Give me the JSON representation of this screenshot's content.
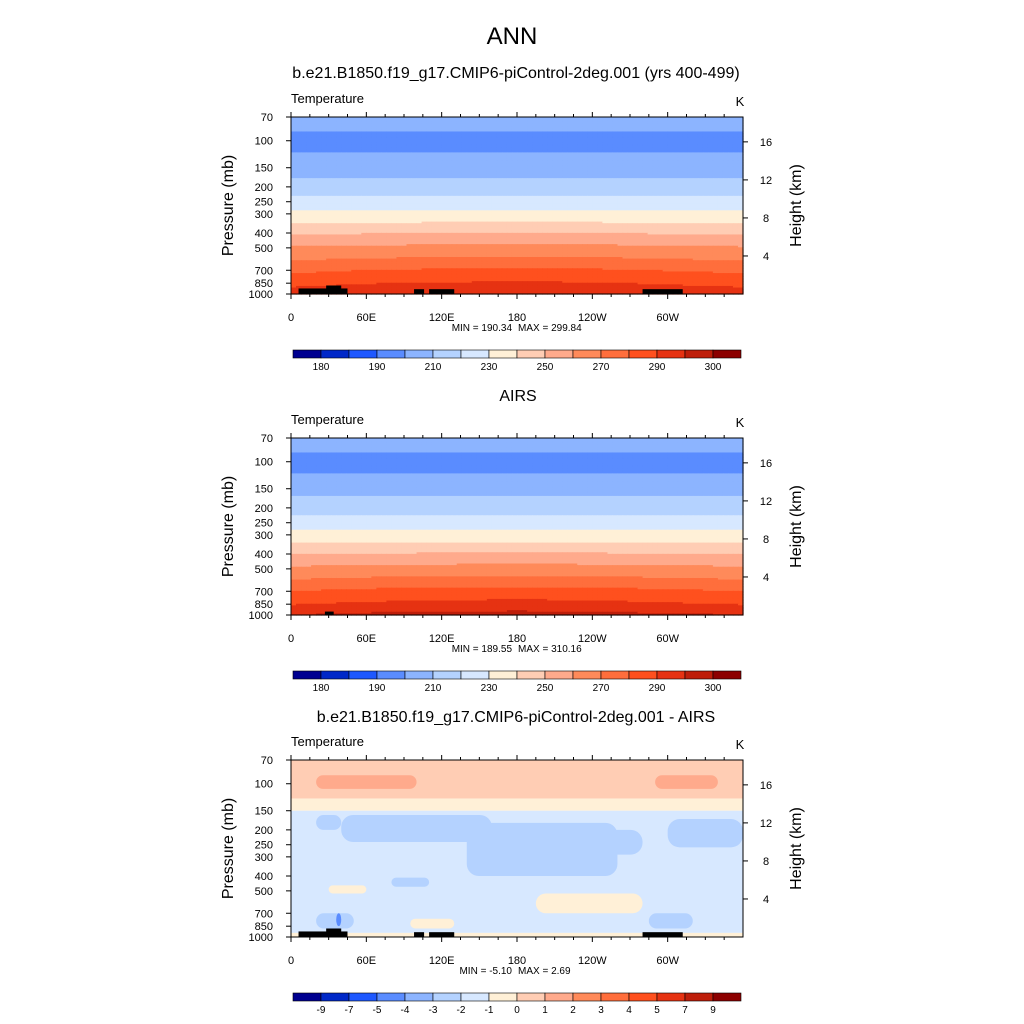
{
  "figure": {
    "title": "ANN"
  },
  "chart_data": [
    {
      "type": "heatmap",
      "title": "b.e21.B1850.f19_g17.CMIP6-piControl-2deg.001 (yrs 400-499)",
      "variable": "Temperature",
      "units": "K",
      "ylabel": "Pressure (mb)",
      "y2label": "Height (km)",
      "pressure_ticks": [
        70,
        100,
        150,
        200,
        250,
        300,
        400,
        500,
        700,
        850,
        1000
      ],
      "height_ticks": [
        4,
        8,
        12,
        16
      ],
      "x_ticks": [
        "0",
        "60E",
        "120E",
        "180",
        "120W",
        "60W"
      ],
      "min_label": "MIN = 190.34",
      "max_label": "MAX = 299.84",
      "colorbar": {
        "tick_labels": [
          "180",
          "190",
          "210",
          "230",
          "250",
          "270",
          "290",
          "300"
        ],
        "colors": [
          "#000090",
          "#0028c8",
          "#1e58ff",
          "#5a8cff",
          "#8cb4ff",
          "#b4d2ff",
          "#d7e8ff",
          "#fff0d7",
          "#ffcdb4",
          "#ffaa8c",
          "#ff8a5a",
          "#ff6e3c",
          "#ff501e",
          "#e63212",
          "#be1e0a",
          "#8c0000"
        ]
      },
      "profile_levels": [
        {
          "p": 70,
          "t": 209
        },
        {
          "p": 100,
          "t": 203
        },
        {
          "p": 130,
          "t": 207
        },
        {
          "p": 150,
          "t": 211
        },
        {
          "p": 200,
          "t": 218
        },
        {
          "p": 250,
          "t": 226
        },
        {
          "p": 300,
          "t": 234
        },
        {
          "p": 400,
          "t": 248
        },
        {
          "p": 500,
          "t": 259
        },
        {
          "p": 700,
          "t": 274
        },
        {
          "p": 850,
          "t": 282
        },
        {
          "p": 1000,
          "t": 289
        }
      ],
      "lon_anomaly": [
        {
          "lon": 0,
          "d": -1.5
        },
        {
          "lon": 60,
          "d": 0.5
        },
        {
          "lon": 120,
          "d": 1.5
        },
        {
          "lon": 180,
          "d": 2.0
        },
        {
          "lon": 240,
          "d": 1.5
        },
        {
          "lon": 300,
          "d": 0.0
        },
        {
          "lon": 360,
          "d": -1.5
        }
      ],
      "topography": [
        {
          "lon0": 6,
          "lon1": 45,
          "p": 920
        },
        {
          "lon0": 28,
          "lon1": 40,
          "p": 880
        },
        {
          "lon0": 98,
          "lon1": 106,
          "p": 930
        },
        {
          "lon0": 110,
          "lon1": 130,
          "p": 930
        },
        {
          "lon0": 280,
          "lon1": 312,
          "p": 930
        }
      ]
    },
    {
      "type": "heatmap",
      "title": "AIRS",
      "variable": "Temperature",
      "units": "K",
      "ylabel": "Pressure (mb)",
      "y2label": "Height (km)",
      "pressure_ticks": [
        70,
        100,
        150,
        200,
        250,
        300,
        400,
        500,
        700,
        850,
        1000
      ],
      "height_ticks": [
        4,
        8,
        12,
        16
      ],
      "x_ticks": [
        "0",
        "60E",
        "120E",
        "180",
        "120W",
        "60W"
      ],
      "min_label": "MIN = 189.55",
      "max_label": "MAX = 310.16",
      "colorbar": {
        "tick_labels": [
          "180",
          "190",
          "210",
          "230",
          "250",
          "270",
          "290",
          "300"
        ],
        "colors": [
          "#000090",
          "#0028c8",
          "#1e58ff",
          "#5a8cff",
          "#8cb4ff",
          "#b4d2ff",
          "#d7e8ff",
          "#fff0d7",
          "#ffcdb4",
          "#ffaa8c",
          "#ff8a5a",
          "#ff6e3c",
          "#ff501e",
          "#e63212",
          "#be1e0a",
          "#8c0000"
        ]
      },
      "profile_levels": [
        {
          "p": 70,
          "t": 209
        },
        {
          "p": 100,
          "t": 203
        },
        {
          "p": 130,
          "t": 207
        },
        {
          "p": 150,
          "t": 212
        },
        {
          "p": 200,
          "t": 219
        },
        {
          "p": 250,
          "t": 227
        },
        {
          "p": 300,
          "t": 235
        },
        {
          "p": 400,
          "t": 249
        },
        {
          "p": 500,
          "t": 260
        },
        {
          "p": 700,
          "t": 276
        },
        {
          "p": 850,
          "t": 284
        },
        {
          "p": 1000,
          "t": 293
        }
      ],
      "lon_anomaly": [
        {
          "lon": 0,
          "d": -1.5
        },
        {
          "lon": 60,
          "d": 0.5
        },
        {
          "lon": 120,
          "d": 1.5
        },
        {
          "lon": 180,
          "d": 2.0
        },
        {
          "lon": 240,
          "d": 1.5
        },
        {
          "lon": 300,
          "d": 0.0
        },
        {
          "lon": 360,
          "d": -1.5
        }
      ],
      "topography": [
        {
          "lon0": 27,
          "lon1": 34,
          "p": 950
        }
      ]
    },
    {
      "type": "heatmap",
      "title": "b.e21.B1850.f19_g17.CMIP6-piControl-2deg.001 - AIRS",
      "variable": "Temperature",
      "units": "K",
      "ylabel": "Pressure (mb)",
      "y2label": "Height (km)",
      "pressure_ticks": [
        70,
        100,
        150,
        200,
        250,
        300,
        400,
        500,
        700,
        850,
        1000
      ],
      "height_ticks": [
        4,
        8,
        12,
        16
      ],
      "x_ticks": [
        "0",
        "60E",
        "120E",
        "180",
        "120W",
        "60W"
      ],
      "min_label": "MIN =  -5.10",
      "max_label": "MAX =   2.69",
      "colorbar": {
        "tick_labels": [
          "-9",
          "-7",
          "-5",
          "-4",
          "-3",
          "-2",
          "-1",
          "0",
          "1",
          "2",
          "3",
          "4",
          "5",
          "7",
          "9"
        ],
        "colors": [
          "#000090",
          "#0028c8",
          "#1e58ff",
          "#5a8cff",
          "#8cb4ff",
          "#b4d2ff",
          "#d7e8ff",
          "#fff0d7",
          "#ffcdb4",
          "#ffaa8c",
          "#ff8a5a",
          "#ff6e3c",
          "#ff501e",
          "#e63212",
          "#be1e0a",
          "#8c0000"
        ]
      },
      "difference_bands": [
        {
          "p0": 70,
          "p1": 125,
          "value": 0.5
        },
        {
          "p0": 125,
          "p1": 150,
          "value": -0.5
        },
        {
          "p0": 150,
          "p1": 940,
          "value": -1.5
        },
        {
          "p0": 940,
          "p1": 1000,
          "value": -0.5
        }
      ],
      "difference_features": [
        {
          "lon0": 20,
          "lon1": 100,
          "p0": 88,
          "p1": 108,
          "value": 1.5
        },
        {
          "lon0": 290,
          "lon1": 340,
          "p0": 88,
          "p1": 108,
          "value": 1.5
        },
        {
          "lon0": 40,
          "lon1": 160,
          "p0": 160,
          "p1": 240,
          "value": -2.5
        },
        {
          "lon0": 190,
          "lon1": 280,
          "p0": 200,
          "p1": 290,
          "value": -2.5
        },
        {
          "lon0": 300,
          "lon1": 360,
          "p0": 170,
          "p1": 260,
          "value": -2.5
        },
        {
          "lon0": 20,
          "lon1": 40,
          "p0": 160,
          "p1": 200,
          "value": -2.5
        },
        {
          "lon0": 140,
          "lon1": 260,
          "p0": 180,
          "p1": 400,
          "value": -2.5
        },
        {
          "lon0": 80,
          "lon1": 110,
          "p0": 410,
          "p1": 470,
          "value": -2.5
        },
        {
          "lon0": 30,
          "lon1": 60,
          "p0": 460,
          "p1": 520,
          "value": -0.5
        },
        {
          "lon0": 195,
          "lon1": 280,
          "p0": 520,
          "p1": 700,
          "value": -0.5
        },
        {
          "lon0": 20,
          "lon1": 50,
          "p0": 700,
          "p1": 880,
          "value": -2.5
        },
        {
          "lon0": 285,
          "lon1": 320,
          "p0": 700,
          "p1": 880,
          "value": -2.5
        },
        {
          "lon0": 36,
          "lon1": 40,
          "p0": 700,
          "p1": 850,
          "value": -4.5
        },
        {
          "lon0": 95,
          "lon1": 130,
          "p0": 760,
          "p1": 880,
          "value": -0.5
        }
      ],
      "topography": [
        {
          "lon0": 6,
          "lon1": 45,
          "p": 920
        },
        {
          "lon0": 28,
          "lon1": 40,
          "p": 880
        },
        {
          "lon0": 98,
          "lon1": 106,
          "p": 930
        },
        {
          "lon0": 110,
          "lon1": 130,
          "p": 930
        },
        {
          "lon0": 280,
          "lon1": 312,
          "p": 930
        }
      ]
    }
  ]
}
